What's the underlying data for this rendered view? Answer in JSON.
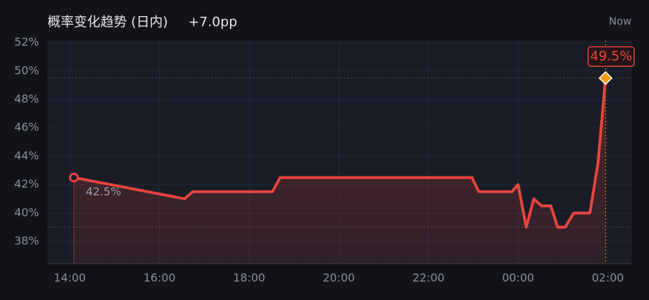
{
  "chart_data": {
    "type": "line",
    "title": "概率变化趋势 (日内)",
    "subtitle": "+7.0pp",
    "annotation": "Now",
    "x": [
      14.09,
      16.56,
      16.74,
      18.52,
      18.69,
      22.97,
      23.12,
      23.86,
      24.0,
      24.18,
      24.35,
      24.52,
      24.73,
      24.88,
      25.05,
      25.24,
      25.6,
      25.78,
      25.95
    ],
    "series": [
      {
        "color": "#e8453c",
        "values": [
          42.5,
          41.0,
          41.5,
          41.5,
          42.5,
          42.5,
          41.5,
          41.5,
          42.0,
          39.0,
          41.0,
          40.5,
          40.5,
          39.0,
          39.0,
          40.0,
          40.0,
          43.5,
          49.5
        ],
        "value_labels": [
          "42.5%",
          null,
          null,
          null,
          null,
          null,
          null,
          null,
          null,
          null,
          null,
          null,
          null,
          null,
          null,
          null,
          null,
          null,
          "49.5%"
        ]
      }
    ],
    "xlim": [
      13.5,
      26.53
    ],
    "xticks": [
      {
        "value": 14,
        "label": "14:00"
      },
      {
        "value": 16,
        "label": "16:00"
      },
      {
        "value": 18,
        "label": "18:00"
      },
      {
        "value": 20,
        "label": "20:00"
      },
      {
        "value": 22,
        "label": "22:00"
      },
      {
        "value": 24,
        "label": "00:00"
      },
      {
        "value": 26,
        "label": "02:00"
      }
    ],
    "ylim": [
      36.43,
      52.15
    ],
    "yticks": [
      {
        "value": 38,
        "label": "38%"
      },
      {
        "value": 40,
        "label": "40%"
      },
      {
        "value": 42,
        "label": "42%"
      },
      {
        "value": 44,
        "label": "44%"
      },
      {
        "value": 46,
        "label": "46%"
      },
      {
        "value": 48,
        "label": "48%"
      },
      {
        "value": 50,
        "label": "50%"
      },
      {
        "value": 52,
        "label": "52%"
      }
    ],
    "grid": true,
    "end_marker_color": "#f39c12"
  }
}
